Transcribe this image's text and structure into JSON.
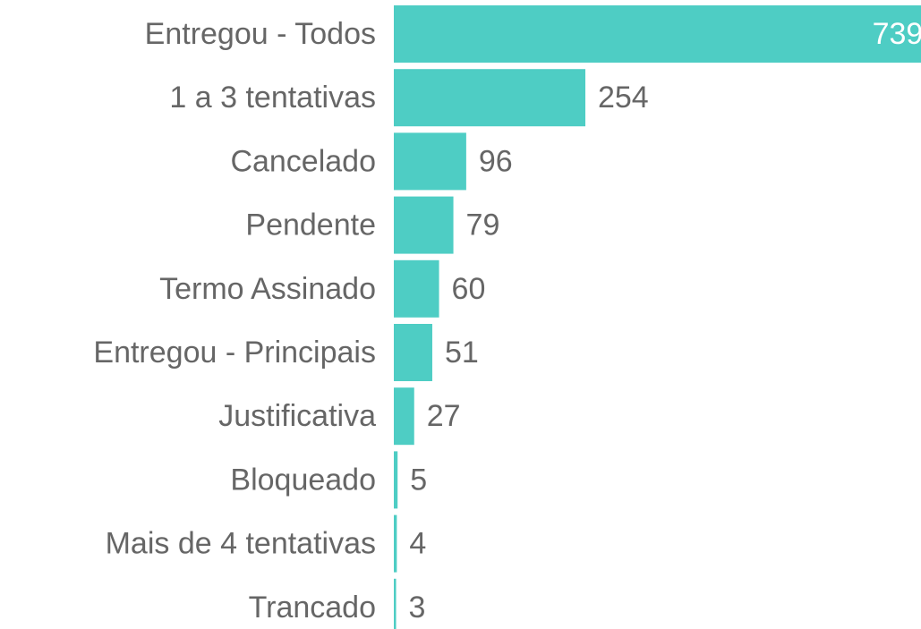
{
  "chart_data": {
    "type": "bar",
    "orientation": "horizontal",
    "categories": [
      "Entregou - Todos",
      "1 a 3 tentativas",
      "Cancelado",
      "Pendente",
      "Termo Assinado",
      "Entregou - Principais",
      "Justificativa",
      "Bloqueado",
      "Mais de 4 tentativas",
      "Trancado"
    ],
    "values": [
      739,
      254,
      96,
      79,
      60,
      51,
      27,
      5,
      4,
      3
    ],
    "color": "#4ecdc4"
  }
}
